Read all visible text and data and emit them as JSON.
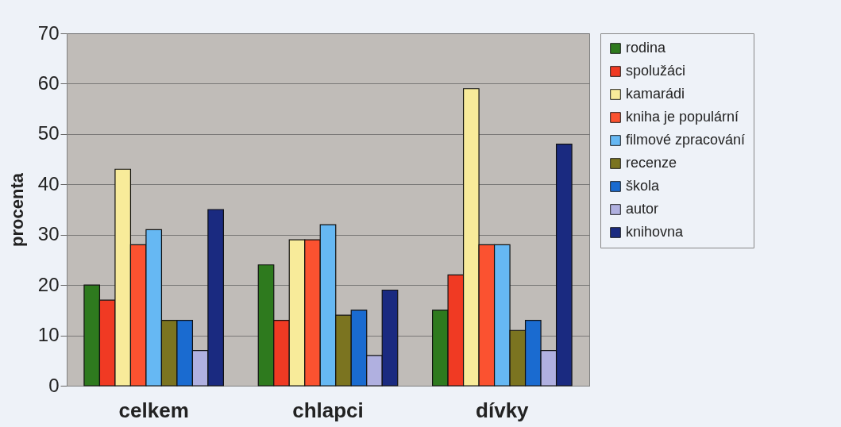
{
  "chart_data": {
    "type": "bar",
    "ylabel": "procenta",
    "categories": [
      "celkem",
      "chlapci",
      "dívky"
    ],
    "series": [
      {
        "name": "rodina",
        "color": "#2e7a1e",
        "values": [
          20,
          24,
          15
        ]
      },
      {
        "name": "spolužáci",
        "color": "#f03a23",
        "values": [
          17,
          13,
          22
        ]
      },
      {
        "name": "kamarádi",
        "color": "#f8eb9a",
        "values": [
          43,
          29,
          59
        ]
      },
      {
        "name": "kniha je populární",
        "color": "#fb5230",
        "values": [
          28,
          29,
          28
        ]
      },
      {
        "name": "filmové zpracování",
        "color": "#66b8f3",
        "values": [
          31,
          32,
          28
        ]
      },
      {
        "name": "recenze",
        "color": "#7b7420",
        "values": [
          13,
          14,
          11
        ]
      },
      {
        "name": "škola",
        "color": "#1a6bd0",
        "values": [
          13,
          15,
          13
        ]
      },
      {
        "name": "autor",
        "color": "#b0b0e0",
        "values": [
          7,
          6,
          7
        ]
      },
      {
        "name": "knihovna",
        "color": "#1a2a80",
        "values": [
          35,
          19,
          48
        ]
      }
    ],
    "ylim": [
      0,
      70
    ],
    "yticks": [
      0,
      10,
      20,
      30,
      40,
      50,
      60,
      70
    ],
    "grid": "y",
    "legend": "right"
  }
}
